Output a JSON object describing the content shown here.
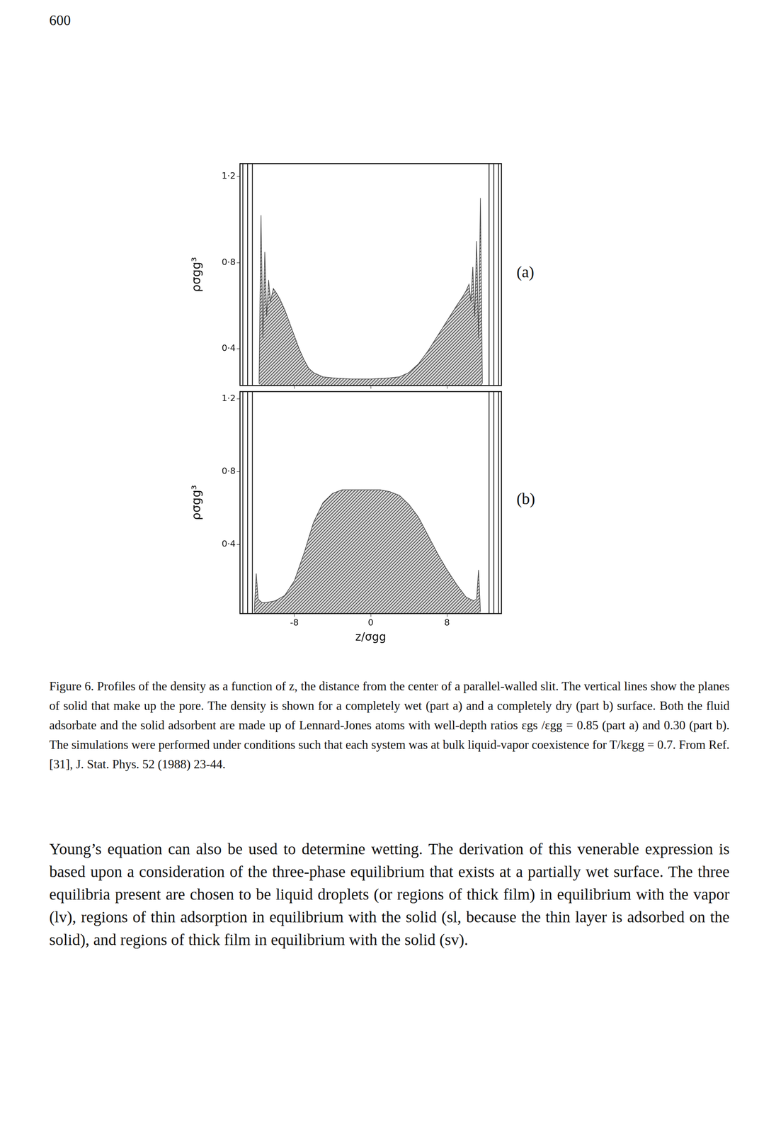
{
  "page_number": "600",
  "chart_data": [
    {
      "type": "area",
      "panel_label": "(a)",
      "y_label": "ρσgg³",
      "color": "#444444",
      "grid": false,
      "tick_labels": "y",
      "xlim": [
        -13.7,
        13.7
      ],
      "xticks": [
        -8,
        0,
        8
      ],
      "ylim": [
        0.23,
        1.26
      ],
      "yticks": [
        {
          "value": 0.4,
          "label": "0·4"
        },
        {
          "value": 0.8,
          "label": "0·8"
        },
        {
          "value": 1.2,
          "label": "1·2"
        }
      ],
      "wall_planes": [
        -13.4,
        -12.9,
        -12.4,
        12.4,
        12.9,
        13.4
      ],
      "x": [
        -11.7,
        -11.5,
        -11.3,
        -11.1,
        -10.9,
        -10.7,
        -10.5,
        -10.2,
        -9.9,
        -9.5,
        -9.0,
        -8.5,
        -8.0,
        -7.5,
        -7.0,
        -6.5,
        -6.0,
        -5.0,
        -4.0,
        -2.0,
        0.0,
        2.0,
        3.0,
        4.0,
        5.0,
        6.0,
        7.0,
        8.0,
        9.0,
        9.6,
        10.0,
        10.3,
        10.5,
        10.7,
        10.9,
        11.1,
        11.3,
        11.5,
        11.7
      ],
      "values": [
        0.24,
        1.02,
        0.45,
        0.85,
        0.55,
        0.72,
        0.62,
        0.68,
        0.66,
        0.63,
        0.58,
        0.52,
        0.46,
        0.4,
        0.35,
        0.31,
        0.29,
        0.27,
        0.265,
        0.26,
        0.26,
        0.265,
        0.27,
        0.29,
        0.33,
        0.39,
        0.46,
        0.53,
        0.6,
        0.64,
        0.67,
        0.7,
        0.62,
        0.78,
        0.55,
        0.9,
        0.45,
        1.1,
        0.24
      ]
    },
    {
      "type": "area",
      "panel_label": "(b)",
      "y_label": "ρσgg³",
      "x_label": "z/σgg",
      "color": "#444444",
      "grid": false,
      "xlim": [
        -13.7,
        13.7
      ],
      "xticks": [
        -8,
        0,
        8
      ],
      "ylim": [
        0.02,
        1.24
      ],
      "yticks": [
        {
          "value": 0.4,
          "label": "0·4"
        },
        {
          "value": 0.8,
          "label": "0·8"
        },
        {
          "value": 1.2,
          "label": "1·2"
        }
      ],
      "wall_planes": [
        -13.4,
        -12.9,
        -12.4,
        12.4,
        12.9,
        13.4
      ],
      "x": [
        -12.2,
        -12.0,
        -11.8,
        -11.4,
        -11.0,
        -10.0,
        -9.0,
        -8.0,
        -7.0,
        -6.0,
        -5.0,
        -4.0,
        -3.0,
        -2.0,
        0.0,
        1.0,
        2.0,
        3.0,
        4.0,
        5.0,
        6.0,
        7.0,
        8.0,
        9.0,
        10.0,
        10.8,
        11.1,
        11.3,
        11.5
      ],
      "values": [
        0.03,
        0.24,
        0.1,
        0.08,
        0.08,
        0.09,
        0.12,
        0.2,
        0.35,
        0.52,
        0.63,
        0.68,
        0.7,
        0.7,
        0.7,
        0.7,
        0.69,
        0.67,
        0.62,
        0.55,
        0.45,
        0.35,
        0.26,
        0.18,
        0.11,
        0.09,
        0.1,
        0.26,
        0.03
      ]
    }
  ],
  "caption": "Figure 6. Profiles of the density as a function of z, the distance from the center of a parallel-walled slit. The vertical lines show the planes of solid that make up the pore. The density is shown for a completely wet (part a) and a completely dry (part b) surface. Both the fluid adsorbate and the solid adsorbent are made up of Lennard-Jones atoms with well-depth ratios εgs /εgg = 0.85 (part a) and 0.30 (part b). The simulations were performed under conditions such that each system was at bulk liquid-vapor coexistence for T/kεgg = 0.7. From Ref. [31], J. Stat. Phys. 52 (1988) 23-44.",
  "body": "Young’s equation can also be used to determine wetting. The derivation of this venerable expression is based upon a consideration of the three-phase equilibrium that exists at a partially wet surface. The three equilibria present are chosen to be liquid droplets (or regions of thick film) in equilibrium with the vapor (lv), regions of thin adsorption in equilibrium with the solid (sl, because the thin layer is adsorbed on the solid), and regions of thick film in equilibrium with the solid (sv)."
}
